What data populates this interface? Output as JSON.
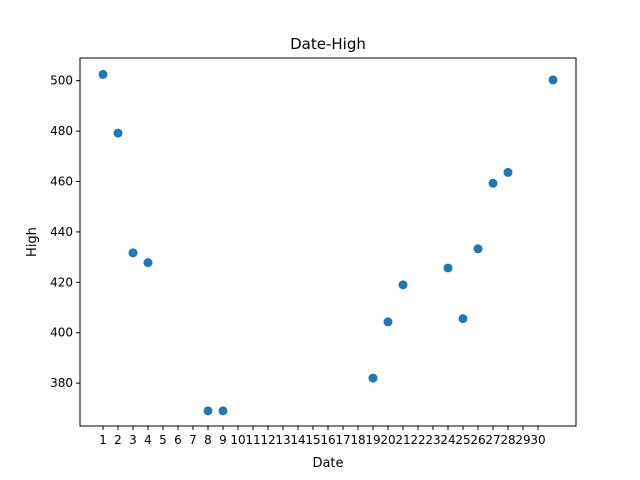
{
  "chart_data": {
    "type": "scatter",
    "title": "Date-High",
    "xlabel": "Date",
    "ylabel": "High",
    "x_tick_labels": [
      "1",
      "2",
      "3",
      "4",
      "5",
      "6",
      "7",
      "8",
      "9",
      "10",
      "11",
      "12",
      "13",
      "14",
      "15",
      "16",
      "17",
      "18",
      "19",
      "20",
      "21",
      "22",
      "23",
      "24",
      "25",
      "26",
      "27",
      "28",
      "29",
      "30"
    ],
    "y_ticks": [
      380,
      400,
      420,
      440,
      460,
      480,
      500
    ],
    "ylim": [
      363,
      509
    ],
    "grid": false,
    "marker_color": "#1f77b4",
    "points": [
      {
        "x": "1",
        "y": 502.5
      },
      {
        "x": "2",
        "y": 479.2
      },
      {
        "x": "3",
        "y": 431.7
      },
      {
        "x": "4",
        "y": 427.8
      },
      {
        "x": "8",
        "y": 369.0
      },
      {
        "x": "9",
        "y": 369.0
      },
      {
        "x": "19",
        "y": 382.0
      },
      {
        "x": "20",
        "y": 404.3
      },
      {
        "x": "21",
        "y": 419.0
      },
      {
        "x": "24",
        "y": 425.7
      },
      {
        "x": "25",
        "y": 405.6
      },
      {
        "x": "26",
        "y": 433.3
      },
      {
        "x": "27",
        "y": 459.3
      },
      {
        "x": "28",
        "y": 463.6
      },
      {
        "x": "31",
        "y": 500.3
      }
    ]
  }
}
